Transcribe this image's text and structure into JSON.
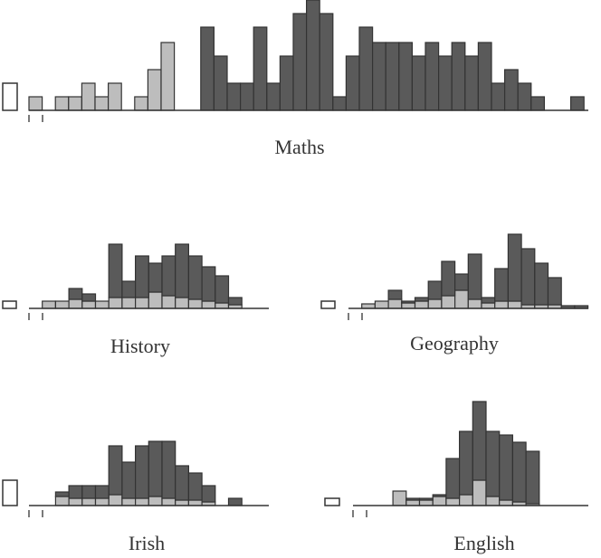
{
  "chart_data": [
    {
      "type": "bar",
      "stacked": true,
      "title": "Maths",
      "series": [
        {
          "color": "#ffffff",
          "values": [
            30,
            null,
            null,
            null,
            null,
            null,
            null,
            null,
            null,
            null,
            null,
            null,
            null,
            null,
            null,
            null,
            null,
            null,
            null,
            null,
            null,
            null,
            null,
            null,
            null,
            null,
            null,
            null,
            null,
            null,
            null,
            null,
            null,
            null,
            null,
            null,
            null,
            null,
            null,
            null,
            null,
            null,
            null
          ]
        },
        {
          "color": "#bdbdbd",
          "values": [
            null,
            15,
            0,
            15,
            15,
            30,
            15,
            30,
            0,
            15,
            45,
            75,
            0,
            0,
            0,
            0,
            0,
            0,
            0,
            0,
            0,
            0,
            0,
            0,
            0,
            0,
            0,
            0,
            0,
            0,
            0,
            0,
            0,
            0,
            0,
            0,
            0,
            0,
            0,
            0,
            0,
            0,
            0
          ]
        },
        {
          "color": "#5a5a5a",
          "values": [
            null,
            0,
            0,
            0,
            0,
            0,
            0,
            0,
            0,
            0,
            0,
            0,
            0,
            0,
            92,
            60,
            30,
            30,
            92,
            30,
            60,
            107,
            122,
            107,
            15,
            60,
            92,
            75,
            75,
            75,
            60,
            75,
            60,
            75,
            60,
            75,
            30,
            45,
            30,
            15,
            0,
            0,
            15
          ]
        }
      ]
    },
    {
      "type": "bar",
      "stacked": true,
      "title": "History",
      "series": [
        {
          "color": "#ffffff",
          "values": [
            8,
            null,
            null,
            null,
            null,
            null,
            null,
            null,
            null,
            null,
            null,
            null,
            null,
            null,
            null,
            null,
            null
          ]
        },
        {
          "color": "#bdbdbd",
          "values": [
            null,
            0,
            8,
            8,
            10,
            8,
            8,
            12,
            12,
            12,
            18,
            14,
            12,
            10,
            8,
            6,
            4
          ]
        },
        {
          "color": "#5a5a5a",
          "values": [
            null,
            0,
            0,
            0,
            12,
            8,
            0,
            59,
            18,
            46,
            32,
            44,
            59,
            48,
            38,
            30,
            8
          ]
        }
      ]
    },
    {
      "type": "bar",
      "stacked": true,
      "title": "Geography",
      "series": [
        {
          "color": "#ffffff",
          "values": [
            8,
            null,
            null,
            null,
            null,
            null,
            null,
            null,
            null,
            null,
            null,
            null,
            null,
            null,
            null,
            null,
            null,
            null,
            null
          ]
        },
        {
          "color": "#bdbdbd",
          "values": [
            null,
            0,
            5,
            8,
            10,
            6,
            8,
            10,
            14,
            20,
            10,
            6,
            8,
            8,
            4,
            4,
            4,
            0,
            0
          ]
        },
        {
          "color": "#5a5a5a",
          "values": [
            null,
            0,
            0,
            0,
            10,
            2,
            4,
            20,
            38,
            18,
            50,
            6,
            36,
            74,
            62,
            46,
            30,
            3,
            3
          ]
        }
      ]
    },
    {
      "type": "bar",
      "stacked": true,
      "title": "Irish",
      "series": [
        {
          "color": "#ffffff",
          "values": [
            28,
            null,
            null,
            null,
            null,
            null,
            null,
            null,
            null,
            null,
            null,
            null,
            null,
            null,
            null,
            null,
            null
          ]
        },
        {
          "color": "#bdbdbd",
          "values": [
            null,
            0,
            0,
            10,
            8,
            8,
            8,
            12,
            8,
            8,
            10,
            8,
            6,
            6,
            4,
            0,
            0
          ]
        },
        {
          "color": "#5a5a5a",
          "values": [
            null,
            0,
            0,
            5,
            14,
            14,
            14,
            54,
            40,
            58,
            61,
            63,
            38,
            30,
            18,
            0,
            8
          ]
        }
      ]
    },
    {
      "type": "bar",
      "stacked": true,
      "title": "English",
      "series": [
        {
          "color": "#ffffff",
          "values": [
            8,
            null,
            null,
            null,
            null,
            null,
            null,
            null,
            null,
            null,
            null,
            null,
            null,
            null,
            null
          ]
        },
        {
          "color": "#bdbdbd",
          "values": [
            null,
            0,
            0,
            0,
            16,
            6,
            6,
            10,
            8,
            12,
            28,
            10,
            6,
            4,
            2
          ]
        },
        {
          "color": "#5a5a5a",
          "values": [
            null,
            0,
            0,
            0,
            0,
            2,
            2,
            2,
            44,
            70,
            87,
            72,
            72,
            66,
            58
          ]
        }
      ]
    }
  ]
}
